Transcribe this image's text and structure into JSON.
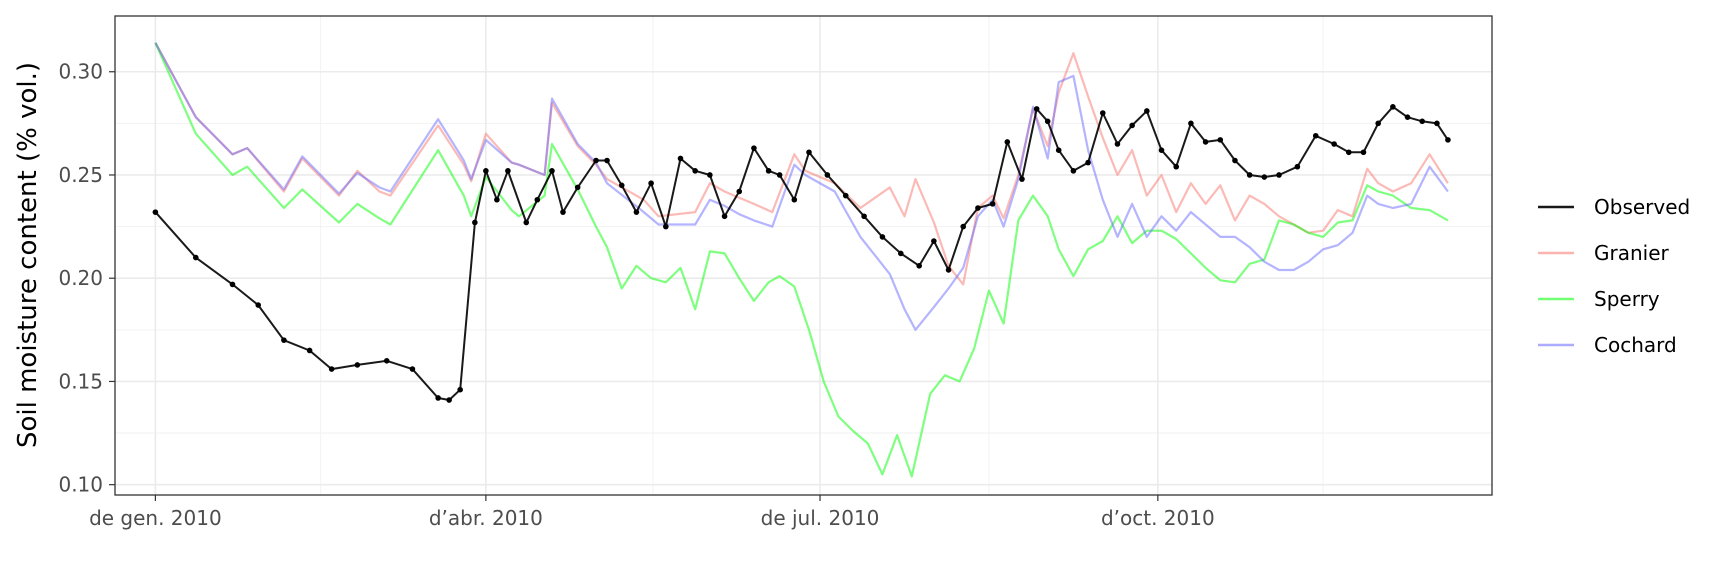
{
  "chart_data": {
    "type": "line",
    "title": "",
    "xlabel": "",
    "ylabel": "Soil moisture content (% vol.)",
    "ylim": [
      0.095,
      0.327
    ],
    "xlim": [
      "2009-12-21",
      "2010-12-31"
    ],
    "x_ticks": [
      {
        "date": "2010-01-01",
        "label": "de gen. 2010"
      },
      {
        "date": "2010-04-01",
        "label": "d’abr. 2010"
      },
      {
        "date": "2010-07-01",
        "label": "de jul. 2010"
      },
      {
        "date": "2010-10-01",
        "label": "d’oct. 2010"
      }
    ],
    "y_ticks": [
      0.1,
      0.15,
      0.2,
      0.25,
      0.3
    ],
    "grid": true,
    "legend_position": "right",
    "series": [
      {
        "name": "Observed",
        "color": "#000000",
        "points": true,
        "x": [
          "2010-01-01",
          "2010-01-12",
          "2010-01-22",
          "2010-01-29",
          "2010-02-05",
          "2010-02-12",
          "2010-02-18",
          "2010-02-25",
          "2010-03-05",
          "2010-03-12",
          "2010-03-19",
          "2010-03-22",
          "2010-03-25",
          "2010-03-29",
          "2010-04-01",
          "2010-04-04",
          "2010-04-07",
          "2010-04-12",
          "2010-04-15",
          "2010-04-19",
          "2010-04-22",
          "2010-04-26",
          "2010-05-01",
          "2010-05-04",
          "2010-05-08",
          "2010-05-12",
          "2010-05-16",
          "2010-05-20",
          "2010-05-24",
          "2010-05-28",
          "2010-06-01",
          "2010-06-05",
          "2010-06-09",
          "2010-06-13",
          "2010-06-17",
          "2010-06-20",
          "2010-06-24",
          "2010-06-28",
          "2010-07-03",
          "2010-07-08",
          "2010-07-13",
          "2010-07-18",
          "2010-07-23",
          "2010-07-28",
          "2010-08-01",
          "2010-08-05",
          "2010-08-09",
          "2010-08-13",
          "2010-08-17",
          "2010-08-21",
          "2010-08-25",
          "2010-08-29",
          "2010-09-01",
          "2010-09-04",
          "2010-09-08",
          "2010-09-12",
          "2010-09-16",
          "2010-09-20",
          "2010-09-24",
          "2010-09-28",
          "2010-10-02",
          "2010-10-06",
          "2010-10-10",
          "2010-10-14",
          "2010-10-18",
          "2010-10-22",
          "2010-10-26",
          "2010-10-30",
          "2010-11-03",
          "2010-11-08",
          "2010-11-13",
          "2010-11-18",
          "2010-11-22",
          "2010-11-26",
          "2010-11-30",
          "2010-12-04",
          "2010-12-08",
          "2010-12-12",
          "2010-12-16",
          "2010-12-19"
        ],
        "y": [
          0.232,
          0.21,
          0.197,
          0.187,
          0.17,
          0.165,
          0.156,
          0.158,
          0.16,
          0.156,
          0.142,
          0.141,
          0.146,
          0.227,
          0.252,
          0.238,
          0.252,
          0.227,
          0.238,
          0.252,
          0.232,
          0.244,
          0.257,
          0.257,
          0.245,
          0.232,
          0.246,
          0.225,
          0.258,
          0.252,
          0.25,
          0.23,
          0.242,
          0.263,
          0.252,
          0.25,
          0.238,
          0.261,
          0.25,
          0.24,
          0.23,
          0.22,
          0.212,
          0.206,
          0.218,
          0.204,
          0.225,
          0.234,
          0.236,
          0.266,
          0.248,
          0.282,
          0.276,
          0.262,
          0.252,
          0.256,
          0.28,
          0.265,
          0.274,
          0.281,
          0.262,
          0.254,
          0.275,
          0.266,
          0.267,
          0.257,
          0.25,
          0.249,
          0.25,
          0.254,
          0.269,
          0.265,
          0.261,
          0.261,
          0.275,
          0.283,
          0.278,
          0.276,
          0.275,
          0.267
        ]
      },
      {
        "name": "Granier",
        "color": "#f8766d",
        "points": false,
        "x": [
          "2010-01-01",
          "2010-01-12",
          "2010-01-22",
          "2010-01-26",
          "2010-02-05",
          "2010-02-10",
          "2010-02-20",
          "2010-02-25",
          "2010-03-03",
          "2010-03-06",
          "2010-03-19",
          "2010-03-26",
          "2010-03-28",
          "2010-04-01",
          "2010-04-08",
          "2010-04-10",
          "2010-04-17",
          "2010-04-19",
          "2010-04-26",
          "2010-05-01",
          "2010-05-04",
          "2010-05-14",
          "2010-05-18",
          "2010-05-28",
          "2010-06-01",
          "2010-06-05",
          "2010-06-09",
          "2010-06-13",
          "2010-06-18",
          "2010-06-24",
          "2010-06-27",
          "2010-07-05",
          "2010-07-12",
          "2010-07-20",
          "2010-07-24",
          "2010-07-27",
          "2010-08-01",
          "2010-08-05",
          "2010-08-09",
          "2010-08-13",
          "2010-08-17",
          "2010-08-20",
          "2010-08-24",
          "2010-08-28",
          "2010-09-01",
          "2010-09-04",
          "2010-09-08",
          "2010-09-12",
          "2010-09-16",
          "2010-09-20",
          "2010-09-24",
          "2010-09-28",
          "2010-10-02",
          "2010-10-06",
          "2010-10-10",
          "2010-10-14",
          "2010-10-18",
          "2010-10-22",
          "2010-10-26",
          "2010-10-30",
          "2010-11-03",
          "2010-11-07",
          "2010-11-11",
          "2010-11-15",
          "2010-11-19",
          "2010-11-23",
          "2010-11-27",
          "2010-11-30",
          "2010-12-04",
          "2010-12-09",
          "2010-12-14",
          "2010-12-19"
        ],
        "y": [
          0.314,
          0.278,
          0.26,
          0.263,
          0.242,
          0.258,
          0.24,
          0.252,
          0.242,
          0.24,
          0.274,
          0.255,
          0.247,
          0.27,
          0.256,
          0.255,
          0.25,
          0.285,
          0.264,
          0.255,
          0.248,
          0.238,
          0.23,
          0.232,
          0.246,
          0.242,
          0.239,
          0.236,
          0.232,
          0.26,
          0.252,
          0.246,
          0.234,
          0.244,
          0.23,
          0.248,
          0.227,
          0.206,
          0.197,
          0.234,
          0.24,
          0.229,
          0.25,
          0.282,
          0.264,
          0.29,
          0.309,
          0.288,
          0.268,
          0.25,
          0.262,
          0.24,
          0.25,
          0.232,
          0.246,
          0.236,
          0.245,
          0.228,
          0.24,
          0.236,
          0.23,
          0.226,
          0.222,
          0.223,
          0.233,
          0.23,
          0.253,
          0.246,
          0.242,
          0.246,
          0.26,
          0.246
        ]
      },
      {
        "name": "Sperry",
        "color": "#00ff00",
        "points": false,
        "x": [
          "2010-01-01",
          "2010-01-12",
          "2010-01-22",
          "2010-01-26",
          "2010-02-05",
          "2010-02-10",
          "2010-02-20",
          "2010-02-25",
          "2010-03-03",
          "2010-03-06",
          "2010-03-19",
          "2010-03-26",
          "2010-03-28",
          "2010-04-01",
          "2010-04-08",
          "2010-04-10",
          "2010-04-17",
          "2010-04-19",
          "2010-04-26",
          "2010-05-01",
          "2010-05-04",
          "2010-05-08",
          "2010-05-12",
          "2010-05-16",
          "2010-05-20",
          "2010-05-24",
          "2010-05-28",
          "2010-06-01",
          "2010-06-05",
          "2010-06-09",
          "2010-06-13",
          "2010-06-17",
          "2010-06-20",
          "2010-06-24",
          "2010-06-28",
          "2010-07-02",
          "2010-07-06",
          "2010-07-10",
          "2010-07-14",
          "2010-07-18",
          "2010-07-22",
          "2010-07-26",
          "2010-07-31",
          "2010-08-04",
          "2010-08-08",
          "2010-08-12",
          "2010-08-16",
          "2010-08-20",
          "2010-08-24",
          "2010-08-28",
          "2010-09-01",
          "2010-09-04",
          "2010-09-08",
          "2010-09-12",
          "2010-09-16",
          "2010-09-20",
          "2010-09-24",
          "2010-09-28",
          "2010-10-02",
          "2010-10-06",
          "2010-10-10",
          "2010-10-14",
          "2010-10-18",
          "2010-10-22",
          "2010-10-26",
          "2010-10-30",
          "2010-11-03",
          "2010-11-07",
          "2010-11-11",
          "2010-11-15",
          "2010-11-19",
          "2010-11-23",
          "2010-11-27",
          "2010-11-30",
          "2010-12-04",
          "2010-12-09",
          "2010-12-14",
          "2010-12-19"
        ],
        "y": [
          0.314,
          0.27,
          0.25,
          0.254,
          0.234,
          0.243,
          0.227,
          0.236,
          0.229,
          0.226,
          0.262,
          0.24,
          0.23,
          0.249,
          0.233,
          0.23,
          0.24,
          0.265,
          0.243,
          0.225,
          0.215,
          0.195,
          0.206,
          0.2,
          0.198,
          0.205,
          0.185,
          0.213,
          0.212,
          0.2,
          0.189,
          0.198,
          0.201,
          0.196,
          0.175,
          0.15,
          0.133,
          0.126,
          0.12,
          0.105,
          0.124,
          0.104,
          0.144,
          0.153,
          0.15,
          0.166,
          0.194,
          0.178,
          0.228,
          0.24,
          0.23,
          0.214,
          0.201,
          0.214,
          0.218,
          0.23,
          0.217,
          0.223,
          0.223,
          0.219,
          0.212,
          0.205,
          0.199,
          0.198,
          0.207,
          0.209,
          0.228,
          0.226,
          0.222,
          0.22,
          0.227,
          0.228,
          0.245,
          0.242,
          0.24,
          0.234,
          0.233,
          0.228
        ]
      },
      {
        "name": "Cochard",
        "color": "#6a6aff",
        "points": false,
        "x": [
          "2010-01-01",
          "2010-01-12",
          "2010-01-22",
          "2010-01-26",
          "2010-02-05",
          "2010-02-10",
          "2010-02-20",
          "2010-02-25",
          "2010-03-03",
          "2010-03-06",
          "2010-03-19",
          "2010-03-26",
          "2010-03-28",
          "2010-04-01",
          "2010-04-08",
          "2010-04-10",
          "2010-04-17",
          "2010-04-19",
          "2010-04-26",
          "2010-05-01",
          "2010-05-04",
          "2010-05-14",
          "2010-05-18",
          "2010-05-28",
          "2010-06-01",
          "2010-06-05",
          "2010-06-09",
          "2010-06-13",
          "2010-06-18",
          "2010-06-24",
          "2010-06-27",
          "2010-07-05",
          "2010-07-12",
          "2010-07-20",
          "2010-07-24",
          "2010-07-27",
          "2010-08-01",
          "2010-08-05",
          "2010-08-09",
          "2010-08-13",
          "2010-08-17",
          "2010-08-20",
          "2010-08-24",
          "2010-08-28",
          "2010-09-01",
          "2010-09-04",
          "2010-09-08",
          "2010-09-12",
          "2010-09-16",
          "2010-09-20",
          "2010-09-24",
          "2010-09-28",
          "2010-10-02",
          "2010-10-06",
          "2010-10-10",
          "2010-10-14",
          "2010-10-18",
          "2010-10-22",
          "2010-10-26",
          "2010-10-30",
          "2010-11-03",
          "2010-11-07",
          "2010-11-11",
          "2010-11-15",
          "2010-11-19",
          "2010-11-23",
          "2010-11-27",
          "2010-11-30",
          "2010-12-04",
          "2010-12-09",
          "2010-12-14",
          "2010-12-19"
        ],
        "y": [
          0.314,
          0.278,
          0.26,
          0.263,
          0.243,
          0.259,
          0.241,
          0.251,
          0.244,
          0.242,
          0.277,
          0.257,
          0.248,
          0.267,
          0.256,
          0.255,
          0.25,
          0.287,
          0.265,
          0.256,
          0.246,
          0.232,
          0.226,
          0.226,
          0.238,
          0.235,
          0.231,
          0.228,
          0.225,
          0.255,
          0.25,
          0.242,
          0.22,
          0.202,
          0.185,
          0.175,
          0.186,
          0.195,
          0.205,
          0.23,
          0.238,
          0.225,
          0.248,
          0.283,
          0.258,
          0.295,
          0.298,
          0.262,
          0.238,
          0.22,
          0.236,
          0.22,
          0.23,
          0.223,
          0.232,
          0.226,
          0.22,
          0.22,
          0.215,
          0.208,
          0.204,
          0.204,
          0.208,
          0.214,
          0.216,
          0.222,
          0.24,
          0.236,
          0.234,
          0.236,
          0.254,
          0.242
        ]
      }
    ]
  }
}
